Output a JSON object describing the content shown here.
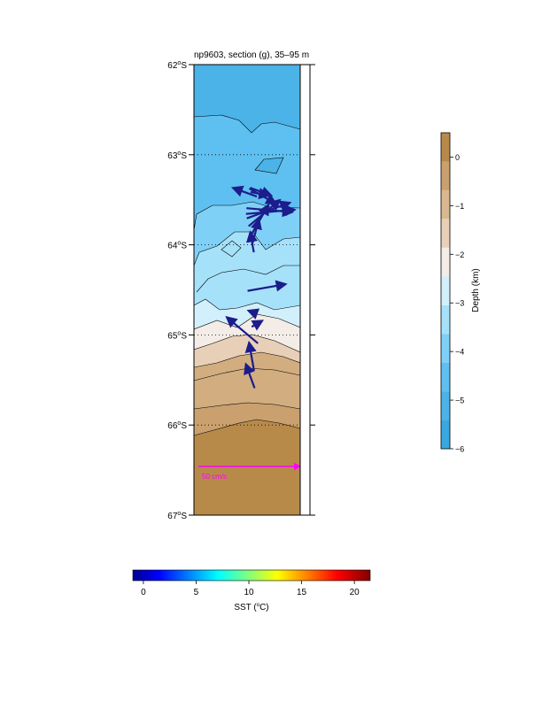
{
  "title": "np9603, section (g), 35–95 m",
  "lat_axis": {
    "ticks": [
      {
        "value": -62,
        "label_num": "62",
        "label_deg": "o",
        "label_hem": "S"
      },
      {
        "value": -63,
        "label_num": "63",
        "label_deg": "o",
        "label_hem": "S"
      },
      {
        "value": -64,
        "label_num": "64",
        "label_deg": "o",
        "label_hem": "S"
      },
      {
        "value": -65,
        "label_num": "65",
        "label_deg": "o",
        "label_hem": "S"
      },
      {
        "value": -66,
        "label_num": "66",
        "label_deg": "o",
        "label_hem": "S"
      },
      {
        "value": -67,
        "label_num": "67",
        "label_deg": "o",
        "label_hem": "S"
      }
    ],
    "gridlines_dotted": true
  },
  "scale_arrow": {
    "label": "50 cm/s",
    "color": "#ff00ff",
    "speed_cm_s": 50
  },
  "depth_colorbar": {
    "label": "Depth (km)",
    "ticks": [
      {
        "value": 0,
        "label": "0"
      },
      {
        "value": -1,
        "label": "−1"
      },
      {
        "value": -2,
        "label": "−2"
      },
      {
        "value": -3,
        "label": "−3"
      },
      {
        "value": -4,
        "label": "−4"
      },
      {
        "value": -5,
        "label": "−5"
      },
      {
        "value": -6,
        "label": "−6"
      }
    ],
    "range": [
      -6,
      0.5
    ],
    "colors": [
      "#3aa8e0",
      "#4bb3e8",
      "#5ec0f0",
      "#7fd0f6",
      "#a6e1fa",
      "#d2f0fc",
      "#f4ece6",
      "#e8d0b8",
      "#d9b890",
      "#c9a06e",
      "#b88a4a"
    ]
  },
  "sst_colorbar": {
    "label": "SST",
    "unit_open": " (",
    "unit_deg": "o",
    "unit_close": "C)",
    "ticks": [
      {
        "value": 0,
        "label": "0"
      },
      {
        "value": 5,
        "label": "5"
      },
      {
        "value": 10,
        "label": "10"
      },
      {
        "value": 15,
        "label": "15"
      },
      {
        "value": 20,
        "label": "20"
      }
    ],
    "range": [
      -1,
      21.5
    ]
  },
  "arrow_color": "#1c1c8c",
  "velocity_vectors": [
    {
      "lat": -63.45,
      "len": 0.25,
      "dir": 200
    },
    {
      "lat": -63.42,
      "len": 0.18,
      "dir": 10
    },
    {
      "lat": -63.4,
      "len": 0.3,
      "dir": 30
    },
    {
      "lat": -63.38,
      "len": 0.22,
      "dir": 20
    },
    {
      "lat": -63.6,
      "len": 0.45,
      "dir": 5
    },
    {
      "lat": -63.65,
      "len": 0.48,
      "dir": 355
    },
    {
      "lat": -63.68,
      "len": 0.45,
      "dir": 340
    },
    {
      "lat": -63.75,
      "len": 0.4,
      "dir": 320
    },
    {
      "lat": -63.85,
      "len": 0.35,
      "dir": 300
    },
    {
      "lat": -63.95,
      "len": 0.25,
      "dir": 285
    },
    {
      "lat": -64.05,
      "len": 0.2,
      "dir": 260
    },
    {
      "lat": -64.5,
      "len": 0.38,
      "dir": 350
    },
    {
      "lat": -64.75,
      "len": 0.06,
      "dir": 200
    },
    {
      "lat": -64.9,
      "len": 0.12,
      "dir": 330
    },
    {
      "lat": -65.05,
      "len": 0.4,
      "dir": 220
    },
    {
      "lat": -65.35,
      "len": 0.28,
      "dir": 260
    },
    {
      "lat": -65.55,
      "len": 0.25,
      "dir": 250
    }
  ]
}
